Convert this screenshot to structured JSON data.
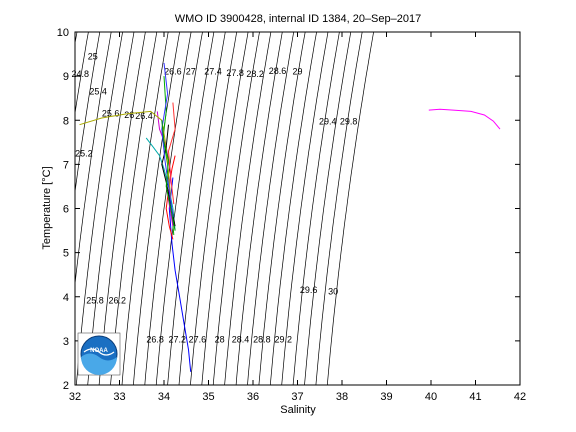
{
  "chart_data": {
    "type": "line",
    "title": "WMO ID 3900428, internal ID 1384, 20–Sep–2017",
    "xlabel": "Salinity",
    "ylabel": "Temperature [°C]",
    "xlim": [
      32,
      42
    ],
    "ylim": [
      2,
      10
    ],
    "x_ticks": [
      "32",
      "33",
      "34",
      "35",
      "36",
      "37",
      "38",
      "39",
      "40",
      "41",
      "42"
    ],
    "y_ticks": [
      "2",
      "3",
      "4",
      "5",
      "6",
      "7",
      "8",
      "9",
      "10"
    ],
    "grid": false,
    "legend": "none",
    "logo": "NOAA",
    "density_contours": {
      "color": "#000000",
      "sigma_levels": [
        24.2,
        24.4,
        24.6,
        24.8,
        25.0,
        25.2,
        25.4,
        25.6,
        25.8,
        26.0,
        26.2,
        26.4,
        26.6,
        26.8,
        27.0,
        27.2,
        27.4,
        27.6,
        27.8,
        28.0,
        28.2,
        28.4,
        28.6,
        28.8,
        29.0,
        29.2,
        29.4,
        29.6,
        29.8,
        30.0
      ]
    },
    "contour_labels": [
      {
        "text": "25",
        "s": 32.4,
        "t": 9.45
      },
      {
        "text": "24.8",
        "s": 32.12,
        "t": 9.05
      },
      {
        "text": "25.4",
        "s": 32.52,
        "t": 8.65
      },
      {
        "text": "25.6",
        "s": 32.8,
        "t": 8.15
      },
      {
        "text": "26",
        "s": 33.22,
        "t": 8.12
      },
      {
        "text": "26.4",
        "s": 33.55,
        "t": 8.1
      },
      {
        "text": "25.2",
        "s": 32.2,
        "t": 7.25
      },
      {
        "text": "26.6",
        "s": 34.2,
        "t": 9.1
      },
      {
        "text": "27",
        "s": 34.6,
        "t": 9.1
      },
      {
        "text": "27.4",
        "s": 35.1,
        "t": 9.1
      },
      {
        "text": "27.8",
        "s": 35.6,
        "t": 9.07
      },
      {
        "text": "28.2",
        "s": 36.05,
        "t": 9.05
      },
      {
        "text": "28.6",
        "s": 36.55,
        "t": 9.12
      },
      {
        "text": "29",
        "s": 37.0,
        "t": 9.1
      },
      {
        "text": "29.4",
        "s": 37.68,
        "t": 7.97
      },
      {
        "text": "29.8",
        "s": 38.15,
        "t": 7.97
      },
      {
        "text": "25.8",
        "s": 32.45,
        "t": 3.92
      },
      {
        "text": "26.2",
        "s": 32.95,
        "t": 3.92
      },
      {
        "text": "29.6",
        "s": 37.25,
        "t": 4.15
      },
      {
        "text": "30",
        "s": 37.8,
        "t": 4.12
      },
      {
        "text": "26.8",
        "s": 33.8,
        "t": 3.03
      },
      {
        "text": "27.2",
        "s": 34.3,
        "t": 3.03
      },
      {
        "text": "27.6",
        "s": 34.75,
        "t": 3.03
      },
      {
        "text": "28",
        "s": 35.25,
        "t": 3.03
      },
      {
        "text": "28.4",
        "s": 35.72,
        "t": 3.03
      },
      {
        "text": "28.8",
        "s": 36.2,
        "t": 3.03
      },
      {
        "text": "29.2",
        "s": 36.68,
        "t": 3.03
      }
    ],
    "series": [
      {
        "color": "#0000ff",
        "x": [
          34.2,
          34.12,
          34.18,
          34.25,
          34.35,
          34.45,
          34.55,
          34.6
        ],
        "y": [
          6.7,
          6.0,
          5.2,
          4.6,
          4.0,
          3.4,
          2.8,
          2.3
        ]
      },
      {
        "color": "#ff0000",
        "x": [
          34.25,
          34.18,
          34.1,
          34.05,
          34.12,
          34.2
        ],
        "y": [
          7.2,
          6.9,
          6.4,
          6.0,
          5.6,
          5.3
        ]
      },
      {
        "color": "#00aa00",
        "x": [
          34.0,
          34.05,
          33.98,
          34.08,
          34.15,
          34.22
        ],
        "y": [
          9.0,
          8.2,
          7.6,
          7.0,
          6.2,
          5.4
        ]
      },
      {
        "color": "#00aaaa",
        "x": [
          33.6,
          33.75,
          33.9,
          34.0,
          34.1,
          34.2,
          34.25
        ],
        "y": [
          7.6,
          7.4,
          7.2,
          6.9,
          6.5,
          6.0,
          5.5
        ]
      },
      {
        "color": "#cc00cc",
        "x": [
          33.85,
          33.9,
          34.05,
          34.15,
          34.1,
          34.2
        ],
        "y": [
          8.2,
          7.8,
          7.4,
          6.8,
          6.2,
          5.6
        ]
      },
      {
        "color": "#aaaa00",
        "x": [
          32.1,
          32.6,
          33.2,
          33.7,
          33.95,
          34.05,
          34.1,
          34.15
        ],
        "y": [
          7.9,
          8.05,
          8.15,
          8.2,
          8.0,
          7.4,
          6.8,
          6.2
        ]
      },
      {
        "color": "#000000",
        "x": [
          34.1,
          34.05,
          33.95,
          34.05,
          34.15,
          34.25
        ],
        "y": [
          7.9,
          7.4,
          7.0,
          6.6,
          6.1,
          5.6
        ]
      },
      {
        "color": "#3333ff",
        "x": [
          34.0,
          34.08,
          33.95,
          34.02,
          34.12,
          34.2
        ],
        "y": [
          9.3,
          8.6,
          7.8,
          7.1,
          6.4,
          5.8
        ]
      },
      {
        "color": "#ff3333",
        "x": [
          34.2,
          34.25,
          34.1,
          34.15,
          34.22
        ],
        "y": [
          8.4,
          7.8,
          7.3,
          6.7,
          6.1
        ]
      },
      {
        "color": "#009900",
        "x": [
          33.95,
          34.0,
          34.1,
          34.05,
          34.15,
          34.25
        ],
        "y": [
          8.0,
          7.5,
          7.1,
          6.5,
          6.0,
          5.5
        ]
      },
      {
        "color": "#ff00ff",
        "x": [
          39.95,
          40.2,
          40.5,
          40.9,
          41.2,
          41.4,
          41.55
        ],
        "y": [
          8.23,
          8.25,
          8.23,
          8.2,
          8.12,
          7.98,
          7.8
        ]
      }
    ]
  }
}
